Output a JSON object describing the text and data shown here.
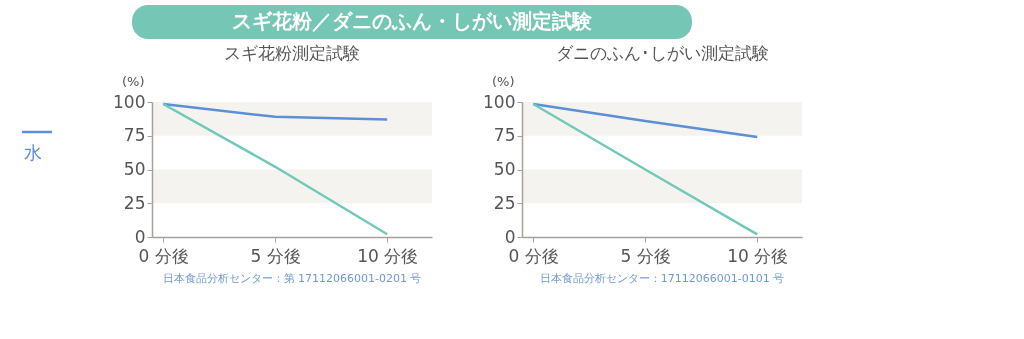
{
  "chart_data": [
    {
      "type": "other",
      "title": "スギ花粉／ダニのふん・しがい測定試験"
    },
    {
      "type": "line",
      "title": "スギ花粉測定試験",
      "ylabel": "(%)",
      "categories": [
        "0 分後",
        "5 分後",
        "10 分後"
      ],
      "series": [
        {
          "name": "水",
          "color": "#5b8fd6",
          "values": [
            98.5,
            89,
            87
          ]
        },
        {
          "color": "#72c9b8",
          "values": [
            98.5,
            52,
            2
          ]
        }
      ],
      "ylim": [
        0,
        100
      ],
      "yticks": [
        0,
        25,
        50,
        75,
        100
      ],
      "grid": false,
      "legend": "left",
      "bands": [
        {
          "axis": "y",
          "from": 75,
          "to": 100,
          "color": "#f5f3ef"
        },
        {
          "axis": "y",
          "from": 25,
          "to": 50,
          "color": "#f5f3ef"
        }
      ],
      "annotations": [
        "日本食品分析センター：第 17112066001-0201 号"
      ]
    },
    {
      "type": "line",
      "title": "ダニのふん･しがい測定試験",
      "ylabel": "(%)",
      "categories": [
        "0 分後",
        "5 分後",
        "10 分後"
      ],
      "series": [
        {
          "color": "#5b8fd6",
          "values": [
            98.5,
            86,
            74
          ]
        },
        {
          "color": "#72c9b8",
          "values": [
            98.5,
            50,
            2
          ]
        }
      ],
      "ylim": [
        0,
        100
      ],
      "yticks": [
        0,
        25,
        50,
        75,
        100
      ],
      "grid": false,
      "bands": [
        {
          "axis": "y",
          "from": 75,
          "to": 100,
          "color": "#f5f3ef"
        },
        {
          "axis": "y",
          "from": 25,
          "to": 50,
          "color": "#f5f3ef"
        }
      ],
      "annotations": [
        "日本食品分析センター：17112066001-0101 号"
      ]
    }
  ]
}
